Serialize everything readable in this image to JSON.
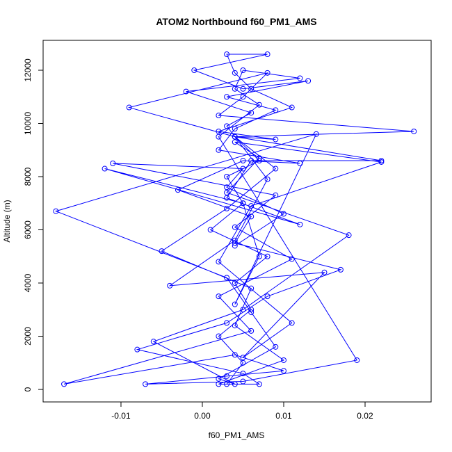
{
  "chart_data": {
    "type": "line",
    "title": "ATOM2 Northbound f60_PM1_AMS",
    "x_label": "f60_PM1_AMS",
    "y_label": "Altitude (m)",
    "color": "#0000ff",
    "markers": "open-circle",
    "xlim": [
      -0.01957,
      0.02812
    ],
    "ylim": [
      -470,
      13124
    ],
    "xticks": [
      -0.01,
      {
        "value": 0,
        "label": "0.00"
      },
      0.01,
      0.02
    ],
    "yticks": [
      0,
      2000,
      4000,
      6000,
      8000,
      10000,
      12000
    ],
    "x": [
      0.003,
      0.005,
      0.002,
      0.006,
      0.004,
      0.008,
      0.001,
      0.005,
      0.003,
      0.007,
      0.004,
      0.009,
      0.002,
      0.011,
      0.006,
      0.004,
      0.003,
      0.008,
      -0.001,
      0.005,
      0.013,
      0.003,
      0.009,
      0.004,
      0.002,
      0.012,
      0.005,
      -0.003,
      0.006,
      0.004,
      0.017,
      0.008,
      0.003,
      -0.008,
      0.005,
      0.007,
      0.002,
      0.01,
      0.004,
      0.006,
      -0.005,
      0.003,
      0.009,
      0.004,
      0.026,
      0.002,
      0.005,
      0.008,
      -0.009,
      0.004,
      0.022,
      0.006,
      0.003,
      0.012,
      -0.012,
      0.005,
      0.007,
      0.004,
      0.014,
      -0.018,
      0.003,
      0.006,
      0.009,
      0.002,
      0.004,
      -0.006,
      0.005,
      0.018,
      0.003,
      0.007,
      0.004,
      0.022,
      0.006,
      0.002,
      0.011,
      0.005,
      0.015,
      -0.004,
      0.004,
      0.008,
      0.003,
      0.006,
      -0.002,
      0.012,
      0.005,
      0.004,
      0.007,
      0.002,
      0.019,
      0.005,
      -0.007,
      0.003,
      0.01,
      0.004,
      -0.017,
      0.006,
      0.002,
      0.011,
      0.004,
      0.009,
      -0.011,
      0.005,
      0.003,
      0.01,
      0.004
    ],
    "values": [
      200,
      1000,
      2000,
      3000,
      4000,
      5000,
      6000,
      7000,
      8000,
      8600,
      9500,
      9400,
      9700,
      10600,
      11300,
      11900,
      12600,
      12600,
      12000,
      11300,
      11600,
      11000,
      10500,
      9800,
      9000,
      8500,
      8600,
      7500,
      6500,
      5500,
      4500,
      3500,
      2500,
      1500,
      600,
      200,
      200,
      1100,
      2400,
      3800,
      5200,
      6800,
      8300,
      9500,
      9700,
      10300,
      11000,
      11900,
      10600,
      9500,
      8600,
      8600,
      7200,
      6200,
      8300,
      7000,
      5000,
      3200,
      9600,
      6700,
      4200,
      2900,
      1600,
      400,
      200,
      1800,
      3000,
      5800,
      7400,
      8700,
      9300,
      8550,
      6900,
      4800,
      2500,
      1200,
      4400,
      3900,
      5600,
      7900,
      9900,
      10400,
      11200,
      11700,
      12000,
      11300,
      10700,
      9500,
      1100,
      300,
      200,
      500,
      700,
      1300,
      200,
      2200,
      3500,
      4900,
      6100,
      7300,
      8500,
      8300,
      7600,
      6600,
      5400
    ]
  }
}
